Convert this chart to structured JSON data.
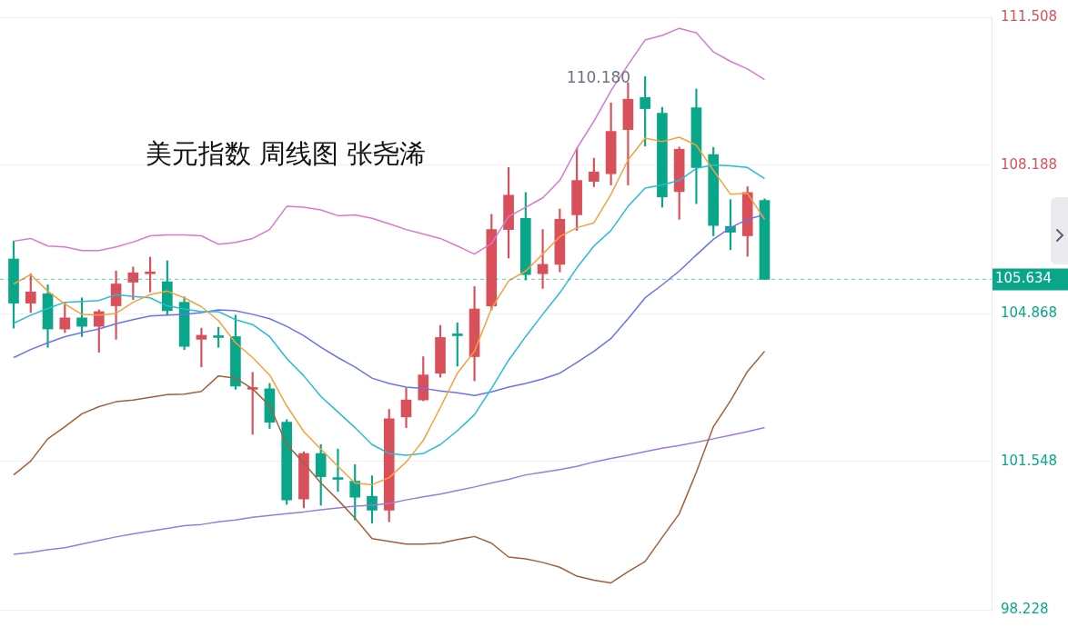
{
  "chart_data": {
    "type": "candlestick",
    "title": "美元指数 周线图 张尧浠",
    "categories": [
      null,
      null,
      null,
      null,
      null,
      null,
      null,
      null,
      null,
      null,
      null,
      null,
      null,
      null,
      null,
      null,
      null,
      null,
      null,
      null,
      null,
      null,
      null,
      null,
      null,
      null,
      null,
      null,
      null,
      null,
      null,
      null,
      null,
      null,
      null,
      null,
      null,
      null,
      null,
      null,
      null,
      null,
      null,
      null,
      null
    ],
    "ohlc": [
      [
        106.09,
        106.49,
        104.54,
        105.1
      ],
      [
        105.1,
        105.76,
        104.89,
        105.35
      ],
      [
        105.31,
        105.51,
        104.11,
        104.52
      ],
      [
        104.52,
        105.12,
        104.44,
        104.77
      ],
      [
        104.77,
        105.22,
        104.35,
        104.58
      ],
      [
        104.58,
        104.95,
        104.0,
        104.91
      ],
      [
        105.04,
        105.82,
        104.29,
        105.53
      ],
      [
        105.57,
        105.91,
        105.18,
        105.78
      ],
      [
        105.76,
        106.13,
        105.35,
        105.78
      ],
      [
        105.58,
        106.05,
        104.83,
        104.93
      ],
      [
        105.12,
        105.24,
        104.06,
        104.13
      ],
      [
        104.29,
        104.54,
        103.67,
        104.38
      ],
      [
        104.35,
        104.56,
        104.11,
        104.33
      ],
      [
        104.35,
        104.83,
        103.17,
        103.24
      ],
      [
        103.17,
        103.55,
        102.16,
        103.18
      ],
      [
        103.18,
        103.3,
        102.29,
        102.43
      ],
      [
        102.43,
        102.49,
        100.59,
        100.69
      ],
      [
        100.71,
        101.77,
        100.51,
        101.73
      ],
      [
        101.73,
        101.93,
        100.57,
        101.21
      ],
      [
        101.19,
        101.83,
        100.88,
        101.15
      ],
      [
        101.11,
        101.48,
        100.24,
        100.75
      ],
      [
        100.77,
        101.23,
        100.17,
        100.46
      ],
      [
        100.46,
        102.72,
        100.2,
        102.51
      ],
      [
        102.55,
        103.2,
        102.31,
        102.93
      ],
      [
        102.93,
        103.9,
        102.91,
        103.49
      ],
      [
        103.53,
        104.6,
        103.44,
        104.33
      ],
      [
        104.38,
        104.66,
        103.69,
        104.37
      ],
      [
        103.9,
        105.47,
        103.36,
        104.97
      ],
      [
        105.04,
        107.09,
        104.95,
        106.75
      ],
      [
        106.75,
        108.14,
        106.11,
        107.52
      ],
      [
        107.0,
        107.58,
        105.62,
        105.74
      ],
      [
        105.76,
        106.75,
        105.43,
        105.97
      ],
      [
        105.97,
        107.21,
        105.8,
        106.98
      ],
      [
        107.08,
        108.57,
        106.73,
        107.85
      ],
      [
        107.83,
        108.35,
        107.71,
        108.04
      ],
      [
        108.0,
        109.59,
        107.75,
        108.95
      ],
      [
        108.99,
        110.04,
        107.75,
        109.67
      ],
      [
        109.71,
        110.18,
        108.62,
        109.46
      ],
      [
        109.36,
        109.49,
        107.25,
        107.48
      ],
      [
        107.6,
        108.6,
        106.98,
        108.55
      ],
      [
        109.48,
        109.9,
        107.33,
        108.14
      ],
      [
        108.43,
        108.59,
        106.61,
        106.84
      ],
      [
        106.82,
        107.42,
        106.3,
        106.69
      ],
      [
        106.61,
        107.71,
        106.15,
        107.58
      ],
      [
        107.4,
        107.44,
        105.634,
        105.634
      ]
    ],
    "colors": [
      "#0aa68a",
      "#d9505a",
      "#0aa68a",
      "#d9505a",
      "#0aa68a",
      "#d9505a",
      "#d9505a",
      "#d9505a",
      "#d9505a",
      "#0aa68a",
      "#0aa68a",
      "#d9505a",
      "#0aa68a",
      "#0aa68a",
      "#d9505a",
      "#0aa68a",
      "#0aa68a",
      "#d9505a",
      "#0aa68a",
      "#0aa68a",
      "#0aa68a",
      "#0aa68a",
      "#d9505a",
      "#d9505a",
      "#d9505a",
      "#d9505a",
      "#0aa68a",
      "#d9505a",
      "#d9505a",
      "#d9505a",
      "#0aa68a",
      "#d9505a",
      "#d9505a",
      "#d9505a",
      "#d9505a",
      "#d9505a",
      "#d9505a",
      "#0aa68a",
      "#0aa68a",
      "#d9505a",
      "#0aa68a",
      "#0aa68a",
      "#0aa68a",
      "#d9505a",
      "#0aa68a"
    ],
    "series": [
      {
        "type": "line",
        "color": "#f6a23c",
        "values": [
          105.53,
          105.74,
          105.37,
          105.08,
          104.85,
          104.83,
          104.87,
          105.12,
          105.29,
          105.37,
          105.22,
          105.02,
          104.71,
          104.21,
          103.88,
          103.49,
          102.8,
          102.22,
          101.83,
          101.44,
          101.07,
          101.03,
          101.19,
          101.54,
          102.02,
          102.76,
          103.53,
          104.02,
          104.98,
          105.6,
          105.82,
          106.2,
          106.59,
          106.79,
          106.9,
          107.54,
          108.31,
          108.8,
          108.72,
          108.82,
          108.64,
          108.08,
          107.54,
          107.56,
          106.98
        ]
      },
      {
        "type": "line",
        "color": "#26bcd6",
        "values": [
          104.65,
          104.83,
          104.98,
          105.12,
          105.14,
          105.16,
          105.29,
          105.25,
          105.22,
          105.04,
          104.97,
          104.91,
          104.91,
          104.73,
          104.62,
          104.35,
          103.86,
          103.47,
          103.01,
          102.66,
          102.31,
          101.93,
          101.73,
          101.69,
          101.73,
          101.93,
          102.24,
          102.6,
          103.19,
          103.82,
          104.35,
          104.85,
          105.33,
          105.89,
          106.38,
          106.73,
          107.27,
          107.68,
          107.75,
          107.85,
          108.12,
          108.2,
          108.18,
          108.14,
          107.89
        ]
      },
      {
        "type": "line",
        "color": "#6a72f0",
        "values": [
          103.88,
          104.06,
          104.21,
          104.35,
          104.44,
          104.52,
          104.64,
          104.73,
          104.81,
          104.83,
          104.85,
          104.89,
          104.95,
          104.93,
          104.85,
          104.75,
          104.58,
          104.37,
          104.11,
          103.88,
          103.67,
          103.42,
          103.3,
          103.22,
          103.19,
          103.13,
          103.09,
          103.03,
          103.11,
          103.22,
          103.3,
          103.4,
          103.53,
          103.77,
          104.02,
          104.31,
          104.75,
          105.22,
          105.51,
          105.82,
          106.18,
          106.53,
          106.79,
          106.98,
          107.08
        ]
      },
      {
        "type": "line",
        "color": "#d878d0",
        "values": [
          106.49,
          106.55,
          106.38,
          106.36,
          106.28,
          106.28,
          106.36,
          106.47,
          106.61,
          106.63,
          106.63,
          106.61,
          106.42,
          106.46,
          106.55,
          106.75,
          107.27,
          107.25,
          107.19,
          107.06,
          107.08,
          107.0,
          106.88,
          106.75,
          106.65,
          106.55,
          106.38,
          106.2,
          106.44,
          107.04,
          107.25,
          107.46,
          107.85,
          108.57,
          109.18,
          109.86,
          110.44,
          111.0,
          111.1,
          111.26,
          111.16,
          110.73,
          110.52,
          110.35,
          110.11
        ]
      },
      {
        "type": "line",
        "color": "#a0603a",
        "values": [
          101.25,
          101.56,
          102.06,
          102.33,
          102.62,
          102.78,
          102.89,
          102.93,
          102.99,
          103.05,
          103.06,
          103.12,
          103.47,
          103.42,
          103.18,
          102.8,
          101.93,
          101.52,
          101.07,
          100.69,
          100.28,
          99.82,
          99.76,
          99.7,
          99.7,
          99.72,
          99.8,
          99.87,
          99.72,
          99.41,
          99.37,
          99.29,
          99.18,
          98.98,
          98.89,
          98.83,
          99.08,
          99.31,
          99.85,
          100.38,
          101.31,
          102.33,
          102.91,
          103.57,
          104.02
        ]
      },
      {
        "type": "line",
        "color": "#9b7ae0",
        "values": [
          99.47,
          99.51,
          99.57,
          99.62,
          99.7,
          99.78,
          99.86,
          99.93,
          99.99,
          100.05,
          100.11,
          100.14,
          100.2,
          100.24,
          100.3,
          100.34,
          100.38,
          100.42,
          100.47,
          100.51,
          100.55,
          100.57,
          100.61,
          100.69,
          100.76,
          100.82,
          100.9,
          100.98,
          101.07,
          101.15,
          101.25,
          101.31,
          101.37,
          101.44,
          101.54,
          101.62,
          101.69,
          101.77,
          101.85,
          101.91,
          101.98,
          102.06,
          102.14,
          102.22,
          102.31
        ]
      }
    ],
    "ylim": [
      98.228,
      111.508
    ],
    "yticks": [
      98.228,
      101.548,
      104.868,
      108.188,
      111.508
    ],
    "grid": "y",
    "tick_labels": "y",
    "marker": "none",
    "ref_lines": [
      {
        "axis": "y",
        "value": 105.634,
        "label": "105.634",
        "color": "#0aa68a",
        "line_style": "dashed"
      }
    ],
    "annotations": [
      "110.180"
    ]
  }
}
